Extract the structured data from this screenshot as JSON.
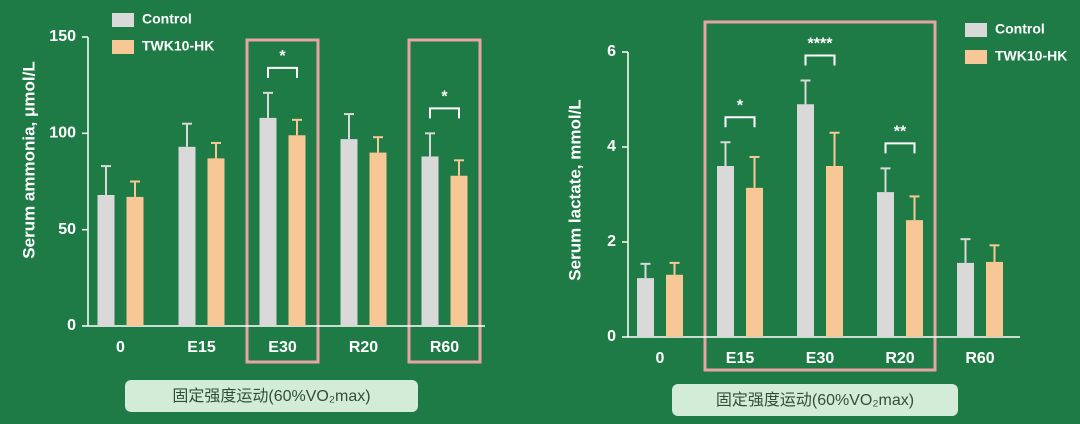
{
  "chart_data": [
    {
      "type": "bar",
      "ylabel": "Serum ammonia, μmol/L",
      "xlabel": "固定强度运动(60%VO₂max)",
      "categories": [
        "0",
        "E15",
        "E30",
        "R20",
        "R60"
      ],
      "series": [
        {
          "name": "Control",
          "color": "#d9d9d9",
          "values": [
            68,
            93,
            108,
            97,
            88
          ],
          "errors": [
            15,
            12,
            13,
            13,
            12
          ]
        },
        {
          "name": "TWK10-HK",
          "color": "#f7c895",
          "values": [
            67,
            87,
            99,
            90,
            78
          ],
          "errors": [
            8,
            8,
            8,
            8,
            8
          ]
        }
      ],
      "significance": [
        null,
        null,
        "*",
        null,
        "*"
      ],
      "ylim": [
        0,
        150
      ],
      "yticks": [
        0,
        50,
        100,
        150
      ],
      "legend": "upper left"
    },
    {
      "type": "bar",
      "ylabel": "Serum lactate, mmol/L",
      "xlabel": "固定强度运动(60%VO₂max)",
      "categories": [
        "0",
        "E15",
        "E30",
        "R20",
        "R60"
      ],
      "series": [
        {
          "name": "Control",
          "color": "#d9d9d9",
          "values": [
            1.24,
            3.6,
            4.9,
            3.05,
            1.56
          ],
          "errors": [
            0.3,
            0.5,
            0.5,
            0.5,
            0.5
          ]
        },
        {
          "name": "TWK10-HK",
          "color": "#f7c895",
          "values": [
            1.31,
            3.14,
            3.6,
            2.46,
            1.58
          ],
          "errors": [
            0.25,
            0.65,
            0.7,
            0.5,
            0.35
          ]
        }
      ],
      "significance": [
        null,
        "*",
        "****",
        "**",
        null
      ],
      "ylim": [
        0,
        6
      ],
      "yticks": [
        0,
        2,
        4,
        6
      ],
      "legend": "upper right"
    }
  ]
}
